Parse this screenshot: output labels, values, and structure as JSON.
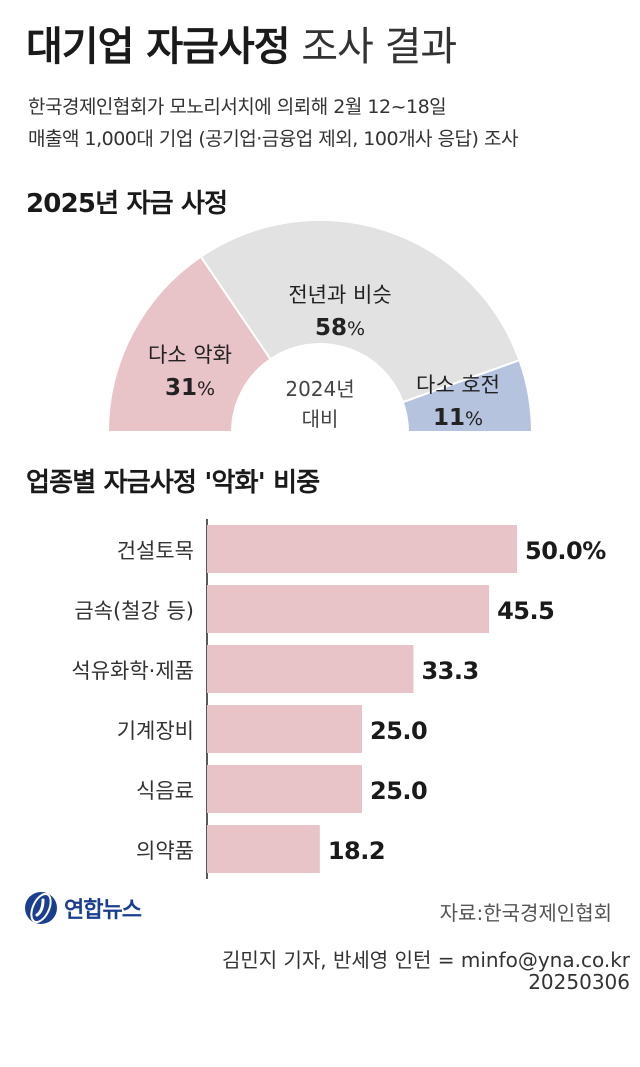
{
  "header": {
    "title_bold": "대기업 자금사정",
    "title_light": "조사 결과",
    "subtitle_line1": "한국경제인협회가 모노리서치에 의뢰해 2월 12~18일",
    "subtitle_line2": "매출액 1,000대 기업 (공기업·금융업 제외, 100개사 응답) 조사"
  },
  "gauge_section": {
    "heading": "2025년 자금 사정"
  },
  "bar_section": {
    "heading": "업종별 자금사정 '악화' 비중"
  },
  "chart_data": [
    {
      "type": "pie",
      "style": "semicircle-gauge",
      "center_label_line1": "2024년",
      "center_label_line2": "대비",
      "categories": [
        "다소 악화",
        "전년과 비슷",
        "다소 호전"
      ],
      "values": [
        31,
        58,
        11
      ],
      "unit": "%",
      "colors": [
        "#e8c3c8",
        "#e2e2e2",
        "#b6c3df"
      ]
    },
    {
      "type": "bar",
      "orientation": "horizontal",
      "categories": [
        "건설토목",
        "금속(철강 등)",
        "석유화학·제품",
        "기계장비",
        "식음료",
        "의약품"
      ],
      "values": [
        50.0,
        45.5,
        33.3,
        25.0,
        25.0,
        18.2
      ],
      "value_labels": [
        "50.0%",
        "45.5",
        "33.3",
        "25.0",
        "25.0",
        "18.2"
      ],
      "xlim": [
        0,
        60
      ],
      "bar_color": "#e8c3c8"
    }
  ],
  "footer": {
    "logo_text": "연합뉴스",
    "source": "자료:한국경제인협회",
    "credit": "김민지 기자, 반세영 인턴 = minfo@yna.co.kr",
    "date": "20250306"
  }
}
